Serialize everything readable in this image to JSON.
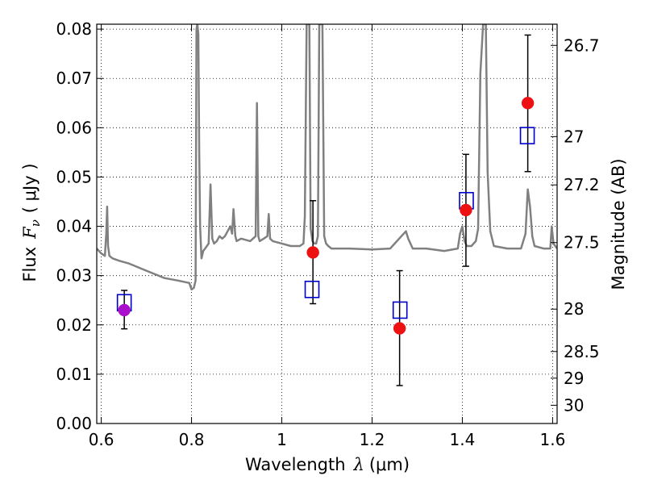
{
  "chart_data": {
    "type": "scatter",
    "xlabel_prefix": "Wavelength",
    "xlabel_symbol": "λ",
    "xlabel_unit": "(μm)",
    "ylabel_prefix": "Flux",
    "ylabel_symbol": "F",
    "ylabel_subscript": "ν",
    "ylabel_unit": "( μJy )",
    "ylabel_right": "Magnitude (AB)",
    "xlim": [
      0.59,
      1.61
    ],
    "ylim": [
      0.0,
      0.081
    ],
    "grid": true,
    "x_ticks": [
      0.6,
      0.8,
      1.0,
      1.2,
      1.4,
      1.6
    ],
    "x_tick_labels": [
      "0.6",
      "0.8",
      "1",
      "1.2",
      "1.4",
      "1.6"
    ],
    "y_ticks": [
      0.0,
      0.01,
      0.02,
      0.03,
      0.04,
      0.05,
      0.06,
      0.07,
      0.08
    ],
    "y_tick_labels": [
      "0.00",
      "0.01",
      "0.02",
      "0.03",
      "0.04",
      "0.05",
      "0.06",
      "0.07",
      "0.08"
    ],
    "right_ticks": [
      {
        "label": "26.7",
        "flux": 0.0767
      },
      {
        "label": "27",
        "flux": 0.0582
      },
      {
        "label": "27.2",
        "flux": 0.0484
      },
      {
        "label": "27.5",
        "flux": 0.0367
      },
      {
        "label": "28",
        "flux": 0.0232
      },
      {
        "label": "28.5",
        "flux": 0.0146
      },
      {
        "label": "29",
        "flux": 0.0092
      },
      {
        "label": "30",
        "flux": 0.0037
      }
    ],
    "series": [
      {
        "kind": "spectrum",
        "color": "#808080",
        "x": [
          0.59,
          0.6,
          0.608,
          0.611,
          0.613,
          0.615,
          0.618,
          0.625,
          0.64,
          0.66,
          0.7,
          0.74,
          0.77,
          0.795,
          0.8,
          0.805,
          0.809,
          0.811,
          0.813,
          0.815,
          0.817,
          0.819,
          0.822,
          0.826,
          0.83,
          0.834,
          0.838,
          0.842,
          0.846,
          0.85,
          0.856,
          0.862,
          0.868,
          0.874,
          0.88,
          0.886,
          0.89,
          0.893,
          0.897,
          0.9,
          0.91,
          0.93,
          0.942,
          0.945,
          0.948,
          0.951,
          0.96,
          0.968,
          0.971,
          0.974,
          0.98,
          1.0,
          1.02,
          1.04,
          1.048,
          1.051,
          1.055,
          1.058,
          1.061,
          1.064,
          1.068,
          1.072,
          1.076,
          1.08,
          1.083,
          1.086,
          1.09,
          1.094,
          1.098,
          1.103,
          1.11,
          1.15,
          1.2,
          1.24,
          1.27,
          1.275,
          1.28,
          1.29,
          1.32,
          1.36,
          1.39,
          1.395,
          1.4,
          1.405,
          1.41,
          1.42,
          1.43,
          1.435,
          1.44,
          1.446,
          1.452,
          1.456,
          1.462,
          1.47,
          1.5,
          1.53,
          1.54,
          1.545,
          1.55,
          1.555,
          1.56,
          1.58,
          1.595,
          1.598,
          1.602,
          1.61
        ],
        "y": [
          0.0355,
          0.0345,
          0.034,
          0.0385,
          0.044,
          0.036,
          0.034,
          0.0335,
          0.033,
          0.0325,
          0.031,
          0.0295,
          0.029,
          0.0285,
          0.0272,
          0.0275,
          0.029,
          0.08,
          0.081,
          0.079,
          0.055,
          0.04,
          0.0335,
          0.035,
          0.0355,
          0.036,
          0.0365,
          0.0485,
          0.0375,
          0.0365,
          0.037,
          0.038,
          0.0375,
          0.038,
          0.039,
          0.04,
          0.0385,
          0.0435,
          0.038,
          0.037,
          0.0375,
          0.037,
          0.038,
          0.065,
          0.038,
          0.037,
          0.0375,
          0.038,
          0.0425,
          0.0375,
          0.037,
          0.0365,
          0.036,
          0.036,
          0.0365,
          0.042,
          0.081,
          0.081,
          0.081,
          0.0395,
          0.037,
          0.0365,
          0.0365,
          0.038,
          0.081,
          0.081,
          0.081,
          0.038,
          0.0365,
          0.036,
          0.0355,
          0.0355,
          0.0353,
          0.0355,
          0.0385,
          0.039,
          0.0375,
          0.0355,
          0.0355,
          0.035,
          0.0355,
          0.0385,
          0.04,
          0.037,
          0.036,
          0.036,
          0.037,
          0.0395,
          0.071,
          0.081,
          0.081,
          0.051,
          0.039,
          0.036,
          0.0355,
          0.0355,
          0.0385,
          0.0475,
          0.044,
          0.038,
          0.036,
          0.0355,
          0.0355,
          0.04,
          0.0365,
          0.0355
        ]
      },
      {
        "kind": "model-squares",
        "color": "#0000cc",
        "x": [
          0.651,
          1.067,
          1.262,
          1.409,
          1.544
        ],
        "y": [
          0.0245,
          0.0272,
          0.023,
          0.0452,
          0.0584
        ]
      },
      {
        "kind": "observed-points",
        "color": "#ee1111",
        "x": [
          1.069,
          1.261,
          1.408,
          1.545
        ],
        "y": [
          0.0347,
          0.0193,
          0.0433,
          0.065
        ],
        "yerr_low": [
          0.0243,
          0.0077,
          0.0319,
          0.0511
        ],
        "yerr_high": [
          0.0452,
          0.031,
          0.0546,
          0.0788
        ]
      },
      {
        "kind": "observed-point-special",
        "color": "#aa10cc",
        "x": [
          0.651
        ],
        "y": [
          0.023
        ],
        "yerr_low": [
          0.0192
        ],
        "yerr_high": [
          0.027
        ]
      }
    ]
  }
}
